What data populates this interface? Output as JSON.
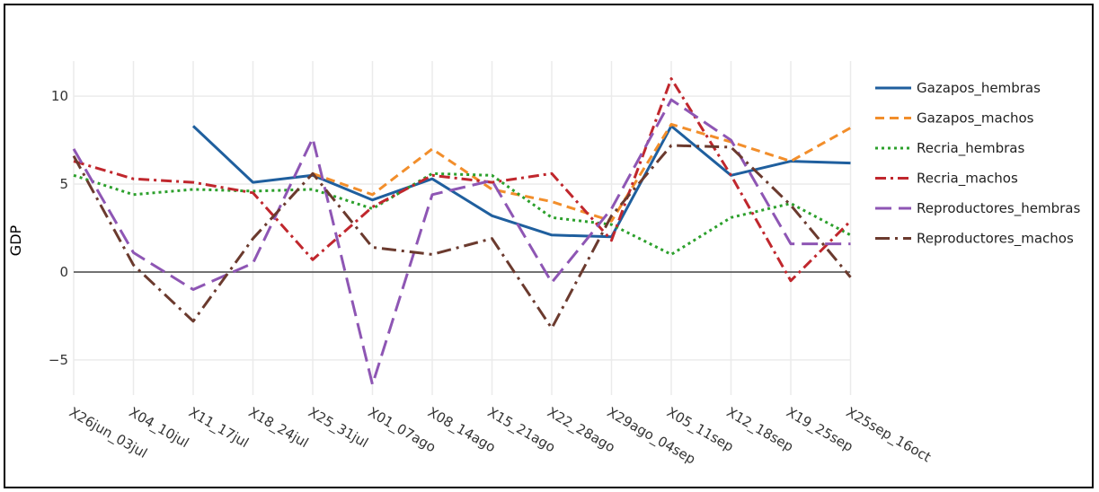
{
  "chart_data": {
    "type": "line",
    "ylabel": "GDP",
    "xlabel": "",
    "ylim": [
      -7,
      12
    ],
    "yticks": [
      -5,
      0,
      5,
      10
    ],
    "ytick_labels": [
      "−5",
      "0",
      "5",
      "10"
    ],
    "grid": true,
    "legend_position": "right",
    "categories": [
      "X26jun_03jul",
      "X04_10jul",
      "X11_17jul",
      "X18_24jul",
      "X25_31jul",
      "X01_07ago",
      "X08_14ago",
      "X15_21ago",
      "X22_28ago",
      "X29ago_04sep",
      "X05_11sep",
      "X12_18sep",
      "X19_25sep",
      "X25sep_16oct"
    ],
    "series": [
      {
        "name": "Gazapos_hembras",
        "color": "#1f5f9e",
        "dash": "solid",
        "values": [
          null,
          null,
          8.3,
          5.1,
          5.5,
          4.1,
          5.3,
          3.2,
          2.1,
          2.0,
          8.3,
          5.5,
          6.3,
          6.2
        ]
      },
      {
        "name": "Gazapos_machos",
        "color": "#f28e2b",
        "dash": "dash",
        "values": [
          null,
          null,
          null,
          null,
          5.6,
          4.4,
          7.0,
          4.7,
          4.0,
          2.9,
          8.4,
          7.4,
          6.3,
          8.2
        ]
      },
      {
        "name": "Recria_hembras",
        "color": "#2ca02c",
        "dash": "dot",
        "values": [
          5.5,
          4.4,
          4.7,
          4.6,
          4.7,
          3.6,
          5.6,
          5.5,
          3.1,
          2.7,
          1.0,
          3.1,
          3.9,
          2.1
        ]
      },
      {
        "name": "Recria_machos",
        "color": "#c0272d",
        "dash": "dashdot",
        "values": [
          6.3,
          5.3,
          5.1,
          4.5,
          0.7,
          3.7,
          5.5,
          5.1,
          5.6,
          1.8,
          11.0,
          5.5,
          -0.5,
          2.9
        ]
      },
      {
        "name": "Reproductores_hembras",
        "color": "#8e56b4",
        "dash": "longdash",
        "values": [
          7.0,
          1.1,
          -1.0,
          0.5,
          7.6,
          -6.4,
          4.4,
          5.2,
          -0.6,
          3.6,
          9.8,
          7.5,
          1.6,
          1.6
        ]
      },
      {
        "name": "Reproductores_machos",
        "color": "#6b3a2e",
        "dash": "longdashdot",
        "values": [
          6.6,
          0.4,
          -2.8,
          1.9,
          5.6,
          1.4,
          1.0,
          1.9,
          -3.2,
          3.2,
          7.2,
          7.1,
          3.8,
          -0.3
        ]
      }
    ]
  }
}
